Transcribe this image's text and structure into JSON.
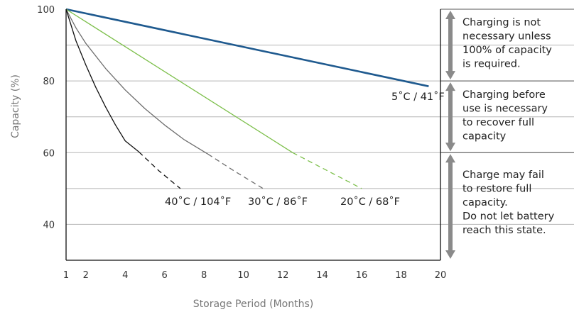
{
  "chart_data": {
    "type": "line",
    "xlabel": "Storage Period (Months)",
    "ylabel": "Capacity (%)",
    "xlim": [
      1,
      20
    ],
    "ylim": [
      30,
      100
    ],
    "x_ticks": [
      1,
      2,
      4,
      6,
      8,
      10,
      12,
      14,
      16,
      18,
      20
    ],
    "y_ticks": [
      40,
      60,
      80,
      100
    ],
    "grid": true,
    "series": [
      {
        "name": "5˚C / 41˚F",
        "color": "#1f5a8f",
        "x": [
          1,
          19.4
        ],
        "y": [
          100,
          78.5
        ]
      },
      {
        "name": "20˚C / 68˚F",
        "color": "#7cbf4a",
        "x": [
          1,
          12.5
        ],
        "y": [
          100,
          60
        ],
        "dashed_x": [
          12.5,
          16
        ],
        "dashed_y": [
          60,
          50
        ]
      },
      {
        "name": "30˚C / 86˚F",
        "color": "#6e6e6e",
        "x": [
          1,
          1.5,
          2,
          3,
          4,
          5,
          6,
          7,
          8.2
        ],
        "y": [
          100,
          94.8,
          90.5,
          83.5,
          77.5,
          72.3,
          67.7,
          63.6,
          59.6
        ],
        "dashed_x": [
          8.2,
          9.5,
          11
        ],
        "dashed_y": [
          59.6,
          55,
          50
        ]
      },
      {
        "name": "40˚C / 104˚F",
        "color": "#111111",
        "x": [
          1,
          1.5,
          2,
          2.5,
          3,
          3.5,
          4,
          4.7
        ],
        "y": [
          100,
          91.2,
          84.5,
          78.3,
          72.8,
          67.8,
          63.3,
          60.2
        ],
        "dashed_x": [
          4.7,
          5.7,
          6.8
        ],
        "dashed_y": [
          60.2,
          55,
          50
        ]
      }
    ],
    "zones": [
      {
        "y_range": [
          80,
          100
        ],
        "text": [
          "Charging is not",
          "necessary unless",
          "100% of capacity",
          "is required."
        ]
      },
      {
        "y_range": [
          60,
          80
        ],
        "text": [
          "Charging before",
          "use is necessary",
          "to recover full",
          "capacity"
        ]
      },
      {
        "y_range": [
          30,
          60
        ],
        "text": [
          "Charge may fail",
          "to restore full",
          "capacity.",
          "Do not let battery",
          "reach this state."
        ]
      }
    ]
  }
}
